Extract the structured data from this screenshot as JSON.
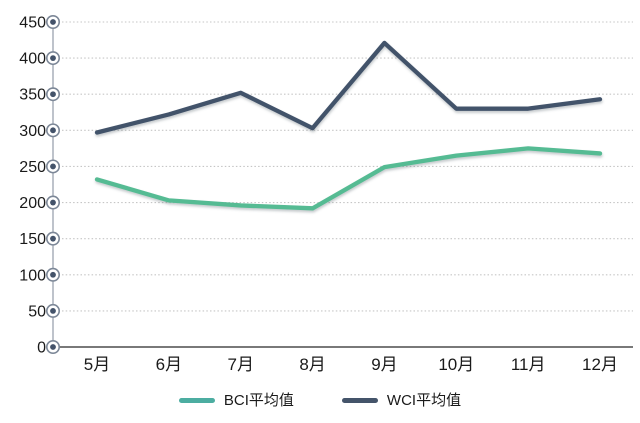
{
  "chart_data": {
    "type": "line",
    "title": "",
    "xlabel": "",
    "ylabel": "",
    "categories": [
      "5月",
      "6月",
      "7月",
      "8月",
      "9月",
      "10月",
      "11月",
      "12月"
    ],
    "series": [
      {
        "name": "BCI平均值",
        "color": "#55bb93",
        "legend_color": "#4cada1",
        "values": [
          232,
          203,
          196,
          192,
          249,
          265,
          275,
          268
        ]
      },
      {
        "name": "WCI平均值",
        "color": "#42526b",
        "legend_color": "#44546a",
        "values": [
          297,
          322,
          352,
          303,
          421,
          330,
          330,
          343
        ]
      }
    ],
    "ylim": [
      0,
      450
    ],
    "ytick_step": 50,
    "yticks": [
      0,
      50,
      100,
      150,
      200,
      250,
      300,
      350,
      400,
      450
    ],
    "grid": "horizontal dotted",
    "legend_position": "bottom",
    "axis_marker": "bullseye"
  },
  "styles": {
    "background": "#ffffff",
    "gridline_color": "#c6c6c6",
    "axis_line_color": "#4d4d4d",
    "tick_label_color": "#1a1a1a",
    "marker_ring_color": "#7c8797",
    "marker_dot_color": "#44536a"
  }
}
